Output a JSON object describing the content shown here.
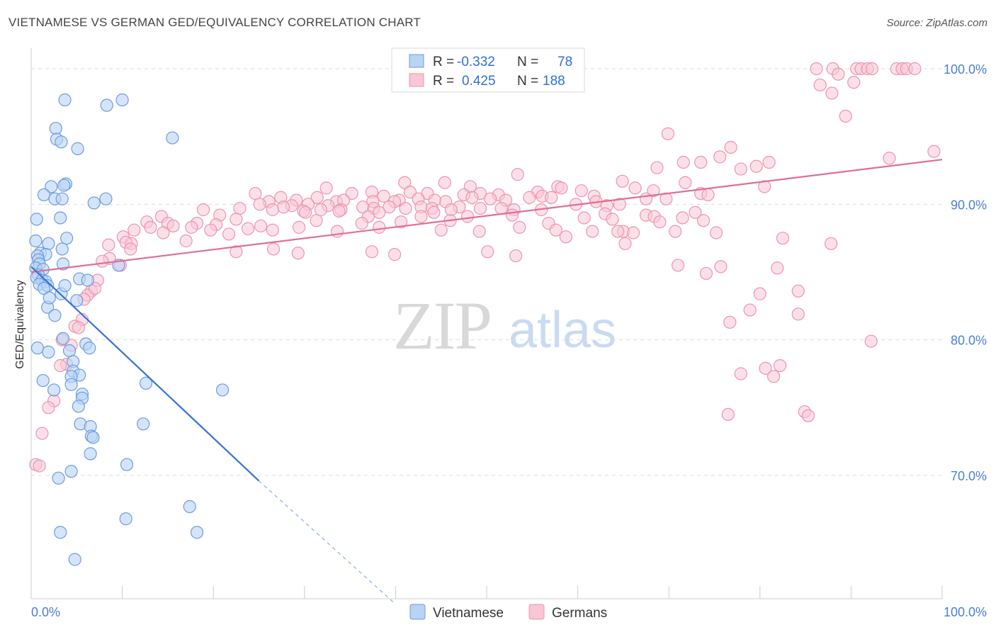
{
  "title": "VIETNAMESE VS GERMAN GED/EQUIVALENCY CORRELATION CHART",
  "source": "Source: ZipAtlas.com",
  "watermark": {
    "zip": "ZIP",
    "atlas": "atlas"
  },
  "colors": {
    "vietnamese_fill": "#b9d3f5",
    "vietnamese_stroke": "#6c9be0",
    "vietnamese_line": "#3572d8",
    "german_fill": "#f9c6d5",
    "german_stroke": "#ec94b1",
    "german_line": "#e06e96",
    "grid": "#dddddd",
    "tick_label": "#4a7fd0"
  },
  "legend_box": {
    "rows": [
      {
        "r_label": "R =",
        "r_value": "-0.332",
        "n_label": "N =",
        "n_value": "78"
      },
      {
        "r_label": "R =",
        "r_value": "0.425",
        "n_label": "N =",
        "n_value": "188"
      }
    ]
  },
  "chart_data": {
    "type": "scatter",
    "xlabel": "",
    "ylabel": "GED/Equivalency",
    "xlim": [
      0,
      100
    ],
    "ylim": [
      60.5,
      101.5
    ],
    "x_ticks": [
      "0.0%",
      "100.0%"
    ],
    "y_ticks": [
      {
        "value": 100,
        "label": "100.0%"
      },
      {
        "value": 90,
        "label": "90.0%"
      },
      {
        "value": 80,
        "label": "80.0%"
      },
      {
        "value": 70,
        "label": "70.0%"
      }
    ],
    "legend": [
      "Vietnamese",
      "Germans"
    ],
    "series": [
      {
        "name": "Vietnamese",
        "trend": {
          "x0": 0,
          "y0": 85.4,
          "x1": 25,
          "y1": 69.6,
          "dash_x1": 40,
          "dash_y1": 60.5
        },
        "points": [
          [
            3.7,
            97.7
          ],
          [
            8.3,
            97.3
          ],
          [
            10.0,
            97.7
          ],
          [
            2.7,
            95.6
          ],
          [
            2.8,
            94.8
          ],
          [
            5.1,
            94.1
          ],
          [
            15.5,
            94.9
          ],
          [
            3.3,
            94.6
          ],
          [
            3.8,
            91.5
          ],
          [
            2.2,
            91.3
          ],
          [
            3.6,
            91.4
          ],
          [
            1.4,
            90.7
          ],
          [
            2.6,
            90.4
          ],
          [
            3.4,
            90.4
          ],
          [
            8.2,
            90.4
          ],
          [
            6.9,
            90.1
          ],
          [
            0.6,
            88.9
          ],
          [
            3.2,
            89.0
          ],
          [
            3.9,
            87.5
          ],
          [
            0.5,
            87.3
          ],
          [
            1.9,
            87.1
          ],
          [
            3.4,
            86.7
          ],
          [
            1.0,
            86.4
          ],
          [
            1.6,
            86.3
          ],
          [
            0.7,
            86.2
          ],
          [
            0.8,
            85.9
          ],
          [
            0.9,
            85.6
          ],
          [
            3.5,
            85.6
          ],
          [
            0.5,
            85.3
          ],
          [
            1.3,
            85.2
          ],
          [
            0.8,
            84.8
          ],
          [
            0.6,
            84.6
          ],
          [
            1.2,
            84.4
          ],
          [
            1.6,
            84.3
          ],
          [
            0.9,
            84.1
          ],
          [
            1.8,
            84.0
          ],
          [
            1.4,
            83.8
          ],
          [
            5.3,
            84.5
          ],
          [
            6.2,
            84.4
          ],
          [
            3.3,
            83.4
          ],
          [
            5.0,
            82.9
          ],
          [
            1.8,
            82.4
          ],
          [
            2.6,
            81.8
          ],
          [
            3.5,
            80.1
          ],
          [
            0.7,
            79.4
          ],
          [
            1.9,
            79.1
          ],
          [
            6.0,
            79.7
          ],
          [
            6.4,
            79.4
          ],
          [
            4.2,
            79.2
          ],
          [
            4.6,
            78.4
          ],
          [
            4.6,
            77.7
          ],
          [
            5.3,
            77.4
          ],
          [
            4.4,
            77.3
          ],
          [
            1.3,
            77.0
          ],
          [
            4.4,
            76.7
          ],
          [
            12.6,
            76.8
          ],
          [
            2.5,
            76.3
          ],
          [
            5.6,
            76.0
          ],
          [
            21.0,
            76.3
          ],
          [
            5.6,
            75.7
          ],
          [
            5.2,
            75.1
          ],
          [
            5.4,
            73.8
          ],
          [
            6.5,
            73.6
          ],
          [
            12.3,
            73.8
          ],
          [
            6.6,
            72.9
          ],
          [
            6.8,
            72.8
          ],
          [
            6.5,
            71.6
          ],
          [
            10.5,
            70.8
          ],
          [
            4.4,
            70.3
          ],
          [
            3.0,
            69.8
          ],
          [
            17.4,
            67.7
          ],
          [
            10.4,
            66.8
          ],
          [
            3.2,
            65.8
          ],
          [
            18.2,
            65.8
          ],
          [
            4.8,
            63.8
          ],
          [
            9.6,
            85.5
          ],
          [
            3.7,
            84.0
          ],
          [
            2.0,
            83.1
          ]
        ]
      },
      {
        "name": "Germans",
        "trend": {
          "x0": 0,
          "y0": 85.0,
          "x1": 100,
          "y1": 93.3
        },
        "points": [
          [
            86.2,
            100.0
          ],
          [
            88.0,
            100.0
          ],
          [
            90.6,
            100.0
          ],
          [
            91.1,
            100.0
          ],
          [
            91.8,
            100.0
          ],
          [
            92.3,
            100.0
          ],
          [
            95.0,
            100.0
          ],
          [
            95.6,
            100.0
          ],
          [
            96.1,
            100.0
          ],
          [
            97.0,
            100.0
          ],
          [
            88.6,
            99.6
          ],
          [
            86.6,
            98.8
          ],
          [
            90.3,
            99.0
          ],
          [
            87.9,
            98.2
          ],
          [
            89.4,
            96.5
          ],
          [
            69.9,
            95.2
          ],
          [
            76.8,
            94.2
          ],
          [
            75.6,
            93.5
          ],
          [
            99.1,
            93.9
          ],
          [
            94.2,
            93.4
          ],
          [
            71.6,
            93.1
          ],
          [
            73.5,
            93.1
          ],
          [
            81.0,
            93.1
          ],
          [
            79.6,
            92.8
          ],
          [
            68.7,
            92.7
          ],
          [
            77.9,
            92.6
          ],
          [
            53.4,
            92.2
          ],
          [
            57.8,
            91.3
          ],
          [
            64.9,
            91.7
          ],
          [
            71.8,
            91.6
          ],
          [
            80.5,
            91.3
          ],
          [
            41.0,
            91.6
          ],
          [
            45.4,
            91.6
          ],
          [
            66.3,
            91.2
          ],
          [
            68.3,
            91.0
          ],
          [
            32.4,
            91.2
          ],
          [
            37.4,
            90.9
          ],
          [
            48.2,
            91.3
          ],
          [
            55.6,
            90.9
          ],
          [
            58.2,
            91.2
          ],
          [
            60.4,
            91.0
          ],
          [
            41.6,
            90.9
          ],
          [
            43.5,
            90.8
          ],
          [
            49.3,
            90.8
          ],
          [
            24.6,
            90.8
          ],
          [
            35.2,
            90.8
          ],
          [
            38.7,
            90.6
          ],
          [
            47.5,
            90.7
          ],
          [
            51.3,
            90.7
          ],
          [
            56.1,
            90.6
          ],
          [
            61.8,
            90.6
          ],
          [
            67.5,
            90.4
          ],
          [
            73.5,
            90.8
          ],
          [
            31.4,
            90.5
          ],
          [
            33.5,
            90.2
          ],
          [
            42.5,
            90.4
          ],
          [
            27.4,
            90.5
          ],
          [
            29.1,
            90.3
          ],
          [
            45.5,
            90.2
          ],
          [
            50.4,
            90.4
          ],
          [
            54.7,
            90.5
          ],
          [
            57.1,
            90.5
          ],
          [
            62.0,
            90.2
          ],
          [
            69.7,
            90.4
          ],
          [
            74.3,
            90.7
          ],
          [
            26.1,
            90.2
          ],
          [
            34.3,
            90.3
          ],
          [
            37.5,
            90.2
          ],
          [
            40.4,
            90.3
          ],
          [
            39.9,
            90.2
          ],
          [
            44.3,
            90.3
          ],
          [
            48.4,
            90.5
          ],
          [
            52.1,
            90.3
          ],
          [
            59.8,
            90.0
          ],
          [
            63.2,
            89.9
          ],
          [
            25.1,
            90.0
          ],
          [
            28.6,
            89.9
          ],
          [
            30.4,
            90.0
          ],
          [
            32.6,
            89.9
          ],
          [
            36.4,
            89.8
          ],
          [
            39.3,
            89.8
          ],
          [
            42.8,
            89.8
          ],
          [
            47.0,
            89.8
          ],
          [
            51.6,
            89.7
          ],
          [
            53.0,
            89.6
          ],
          [
            56.0,
            89.6
          ],
          [
            64.6,
            90.0
          ],
          [
            27.7,
            89.8
          ],
          [
            31.8,
            89.6
          ],
          [
            34.0,
            89.6
          ],
          [
            37.6,
            89.7
          ],
          [
            41.1,
            89.7
          ],
          [
            44.0,
            89.7
          ],
          [
            46.1,
            89.6
          ],
          [
            49.3,
            89.7
          ],
          [
            18.9,
            89.6
          ],
          [
            22.9,
            89.7
          ],
          [
            26.5,
            89.6
          ],
          [
            29.9,
            89.5
          ],
          [
            33.8,
            89.5
          ],
          [
            38.2,
            89.4
          ],
          [
            44.2,
            89.4
          ],
          [
            63.0,
            89.3
          ],
          [
            67.5,
            89.2
          ],
          [
            72.9,
            89.4
          ],
          [
            14.3,
            89.1
          ],
          [
            20.7,
            89.2
          ],
          [
            30.1,
            89.4
          ],
          [
            37.0,
            89.1
          ],
          [
            42.8,
            89.1
          ],
          [
            47.9,
            89.1
          ],
          [
            52.8,
            89.2
          ],
          [
            60.7,
            89.0
          ],
          [
            63.8,
            88.9
          ],
          [
            68.4,
            89.1
          ],
          [
            71.5,
            89.0
          ],
          [
            73.8,
            88.8
          ],
          [
            12.7,
            88.7
          ],
          [
            15.0,
            88.6
          ],
          [
            18.2,
            88.6
          ],
          [
            20.3,
            88.5
          ],
          [
            22.5,
            88.9
          ],
          [
            25.2,
            88.4
          ],
          [
            31.3,
            88.8
          ],
          [
            36.3,
            88.6
          ],
          [
            40.6,
            88.7
          ],
          [
            46.0,
            88.8
          ],
          [
            56.8,
            88.6
          ],
          [
            69.0,
            88.7
          ],
          [
            11.3,
            88.1
          ],
          [
            13.1,
            88.3
          ],
          [
            15.6,
            88.4
          ],
          [
            17.6,
            88.3
          ],
          [
            19.7,
            88.1
          ],
          [
            23.8,
            88.2
          ],
          [
            26.5,
            88.1
          ],
          [
            29.4,
            88.3
          ],
          [
            33.6,
            88.0
          ],
          [
            38.2,
            88.3
          ],
          [
            45.0,
            88.1
          ],
          [
            49.2,
            88.0
          ],
          [
            53.6,
            88.3
          ],
          [
            57.6,
            88.1
          ],
          [
            61.6,
            88.0
          ],
          [
            65.0,
            88.0
          ],
          [
            70.7,
            88.0
          ],
          [
            75.2,
            87.9
          ],
          [
            14.5,
            87.9
          ],
          [
            10.1,
            87.6
          ],
          [
            8.5,
            87.0
          ],
          [
            11.0,
            87.1
          ],
          [
            17.0,
            87.3
          ],
          [
            21.7,
            87.8
          ],
          [
            58.7,
            87.6
          ],
          [
            64.4,
            88.0
          ],
          [
            66.1,
            87.9
          ],
          [
            10.4,
            87.2
          ],
          [
            10.9,
            86.7
          ],
          [
            22.5,
            86.5
          ],
          [
            26.6,
            86.7
          ],
          [
            29.3,
            86.4
          ],
          [
            37.4,
            86.5
          ],
          [
            39.9,
            86.3
          ],
          [
            50.1,
            86.5
          ],
          [
            53.2,
            86.2
          ],
          [
            82.5,
            87.5
          ],
          [
            87.8,
            87.1
          ],
          [
            65.2,
            87.1
          ],
          [
            8.6,
            86.0
          ],
          [
            7.8,
            85.8
          ],
          [
            9.8,
            85.5
          ],
          [
            71.0,
            85.5
          ],
          [
            75.7,
            85.4
          ],
          [
            81.9,
            85.3
          ],
          [
            74.1,
            84.9
          ],
          [
            7.3,
            84.4
          ],
          [
            6.6,
            83.6
          ],
          [
            6.2,
            83.3
          ],
          [
            7.0,
            83.8
          ],
          [
            5.8,
            83.0
          ],
          [
            80.0,
            83.4
          ],
          [
            84.2,
            83.6
          ],
          [
            78.9,
            82.2
          ],
          [
            84.2,
            81.9
          ],
          [
            76.7,
            81.3
          ],
          [
            5.6,
            81.5
          ],
          [
            4.8,
            81.0
          ],
          [
            5.2,
            80.9
          ],
          [
            3.4,
            80.0
          ],
          [
            4.4,
            79.6
          ],
          [
            92.2,
            79.9
          ],
          [
            3.9,
            78.2
          ],
          [
            3.2,
            78.1
          ],
          [
            82.2,
            78.1
          ],
          [
            80.6,
            77.9
          ],
          [
            77.9,
            77.5
          ],
          [
            81.5,
            77.3
          ],
          [
            2.5,
            75.5
          ],
          [
            1.9,
            75.0
          ],
          [
            76.5,
            74.5
          ],
          [
            84.9,
            74.7
          ],
          [
            85.3,
            74.4
          ],
          [
            1.2,
            73.1
          ],
          [
            0.5,
            70.8
          ],
          [
            0.9,
            70.7
          ]
        ]
      }
    ]
  }
}
